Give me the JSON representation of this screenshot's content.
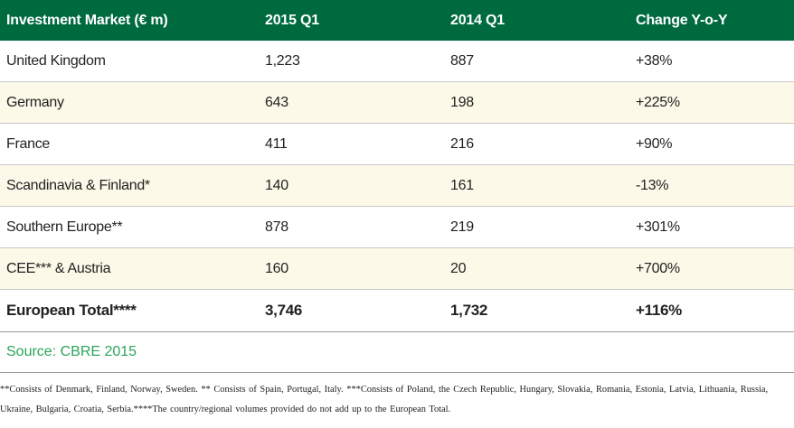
{
  "table": {
    "headers": [
      "Investment Market (€ m)",
      "2015 Q1",
      "2014 Q1",
      "Change Y-o-Y"
    ],
    "rows": [
      [
        "United Kingdom",
        "1,223",
        "887",
        "+38%"
      ],
      [
        "Germany",
        "643",
        "198",
        "+225%"
      ],
      [
        "France",
        "411",
        "216",
        "+90%"
      ],
      [
        "Scandinavia & Finland*",
        "140",
        "161",
        "-13%"
      ],
      [
        "Southern Europe**",
        "878",
        "219",
        "+301%"
      ],
      [
        "CEE*** & Austria",
        "160",
        "20",
        "+700%"
      ]
    ],
    "total": [
      "European Total****",
      "3,746",
      "1,732",
      "+116%"
    ]
  },
  "source": "Source: CBRE 2015",
  "footnote": "**Consists of Denmark, Finland, Norway, Sweden. ** Consists of Spain, Portugal, Italy. ***Consists of Poland, the Czech Republic, Hungary, Slovakia, Romania, Estonia, Latvia, Lithuania, Russia, Ukraine, Bulgaria, Croatia, Serbia.****The country/regional volumes provided do not add up to the European Total.",
  "colors": {
    "header_bg": "#006a3f",
    "alt_row_bg": "#fcf9e8",
    "source_text": "#2aa55a"
  }
}
